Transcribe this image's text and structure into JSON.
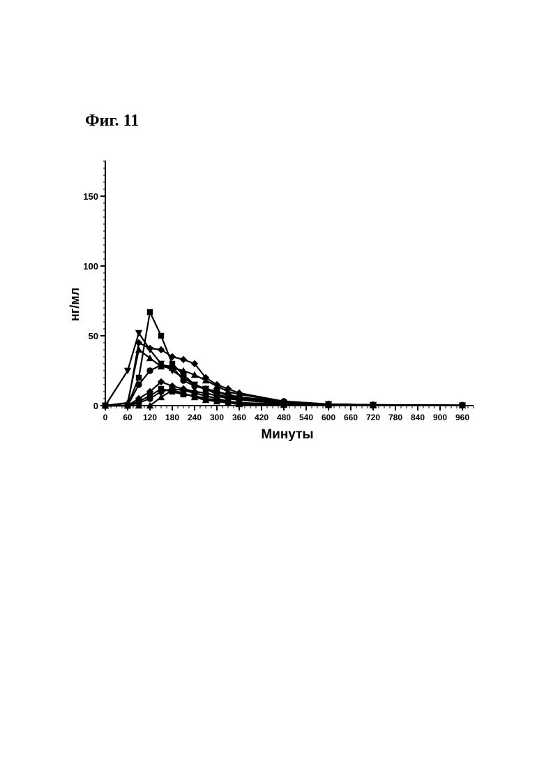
{
  "figure": {
    "title": "Фиг. 11"
  },
  "chart_data": {
    "type": "line",
    "xlabel": "Минуты",
    "ylabel": "нг/мл",
    "xlim": [
      0,
      990
    ],
    "ylim": [
      0,
      175
    ],
    "xticks": [
      0,
      60,
      120,
      180,
      240,
      300,
      360,
      420,
      480,
      540,
      600,
      660,
      720,
      780,
      840,
      900,
      960
    ],
    "yticks": [
      0,
      50,
      100,
      150
    ],
    "grid": false,
    "legend": false,
    "series": [
      {
        "marker": "square",
        "x": [
          0,
          60,
          90,
          120,
          150,
          180,
          210,
          240,
          270,
          300,
          330,
          360,
          480,
          600,
          720,
          960
        ],
        "y": [
          0,
          0,
          20,
          67,
          50,
          30,
          22,
          15,
          12,
          8,
          6,
          4,
          1.5,
          0.5,
          0.2,
          0.1
        ]
      },
      {
        "marker": "triangle-down",
        "x": [
          0,
          60,
          90,
          120,
          150,
          180,
          210,
          240,
          270,
          300,
          330,
          360,
          480,
          600,
          720,
          960
        ],
        "y": [
          0,
          25,
          52,
          40,
          30,
          25,
          20,
          15,
          12,
          10,
          7,
          5,
          2,
          1,
          0.5,
          0.2
        ]
      },
      {
        "marker": "diamond",
        "x": [
          0,
          60,
          90,
          120,
          150,
          180,
          210,
          240,
          270,
          300,
          330,
          360,
          480,
          600,
          720,
          960
        ],
        "y": [
          0,
          0,
          45,
          41,
          40,
          35,
          33,
          30,
          20,
          15,
          12,
          9,
          3,
          1,
          0.5,
          0.2
        ]
      },
      {
        "marker": "triangle-up",
        "x": [
          0,
          60,
          90,
          120,
          150,
          180,
          210,
          240,
          270,
          300,
          330,
          360,
          480,
          600,
          720,
          960
        ],
        "y": [
          0,
          2,
          40,
          34,
          28,
          27,
          25,
          22,
          18,
          14,
          10,
          8,
          3,
          1,
          0.5,
          0.2
        ]
      },
      {
        "marker": "circle",
        "x": [
          0,
          60,
          90,
          120,
          150,
          180,
          210,
          240,
          270,
          300,
          330,
          360,
          480,
          600,
          720,
          960
        ],
        "y": [
          0,
          0,
          15,
          25,
          29,
          28,
          18,
          14,
          12,
          10,
          8,
          6,
          3,
          1,
          0.5,
          0.3
        ]
      },
      {
        "marker": "diamond",
        "x": [
          0,
          60,
          90,
          120,
          150,
          180,
          210,
          240,
          270,
          300,
          330,
          360,
          480,
          600,
          720,
          960
        ],
        "y": [
          0,
          0,
          5,
          10,
          17,
          14,
          12,
          10,
          9,
          7,
          5,
          4,
          2,
          1,
          0.5,
          0.2
        ]
      },
      {
        "marker": "square",
        "x": [
          0,
          60,
          90,
          120,
          150,
          180,
          210,
          240,
          270,
          300,
          330,
          360,
          480,
          600,
          720,
          960
        ],
        "y": [
          0,
          0,
          3,
          7,
          12,
          10,
          8,
          7,
          5,
          4,
          3,
          2,
          1,
          0.5,
          0.2,
          0.1
        ]
      },
      {
        "marker": "triangle-up",
        "x": [
          0,
          60,
          90,
          120,
          150,
          180,
          210,
          240,
          270,
          300,
          330,
          360,
          480,
          600,
          720,
          960
        ],
        "y": [
          0,
          0,
          0,
          0,
          6,
          11,
          9,
          6,
          4,
          3,
          2,
          1,
          0.5,
          0.3,
          0.1,
          0.1
        ]
      },
      {
        "marker": "circle",
        "x": [
          0,
          60,
          90,
          120,
          150,
          180,
          210,
          240,
          270,
          300,
          330,
          360,
          480,
          600,
          720,
          960
        ],
        "y": [
          0,
          0,
          2,
          5,
          10,
          12,
          11,
          9,
          7,
          5,
          3,
          2,
          1,
          0.5,
          0.2,
          0.1
        ]
      }
    ]
  }
}
